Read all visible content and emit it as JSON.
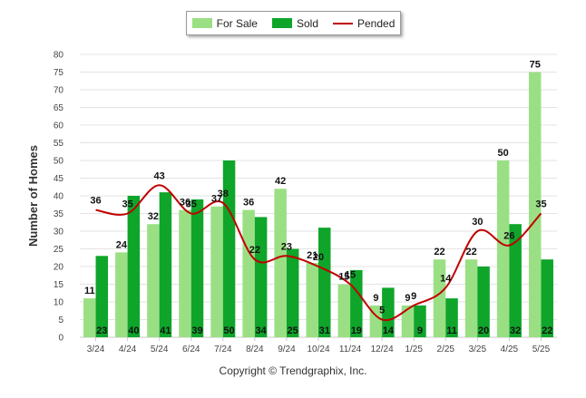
{
  "legend": {
    "for_sale": "For Sale",
    "sold": "Sold",
    "pended": "Pended"
  },
  "footer": {
    "copyright": "Copyright © Trendgraphix, Inc."
  },
  "colors": {
    "for_sale": "#9bdf84",
    "sold": "#0ea52a",
    "pended": "#c00000",
    "grid": "#e3e3e3",
    "axis_text": "#444444"
  },
  "chart_data": {
    "type": "bar",
    "ylabel": "Number of Homes",
    "xlabel": "",
    "ylim": [
      0,
      80
    ],
    "yticks": [
      0,
      5,
      10,
      15,
      20,
      25,
      30,
      35,
      40,
      45,
      50,
      55,
      60,
      65,
      70,
      75,
      80
    ],
    "grid": true,
    "legend_position": "top-center",
    "categories": [
      "3/24",
      "4/24",
      "5/24",
      "6/24",
      "7/24",
      "8/24",
      "9/24",
      "10/24",
      "11/24",
      "12/24",
      "1/25",
      "2/25",
      "3/25",
      "4/25",
      "5/25"
    ],
    "series": [
      {
        "name": "For Sale",
        "type": "bar",
        "values": [
          11,
          24,
          32,
          36,
          37,
          36,
          42,
          21,
          15,
          9,
          9,
          22,
          22,
          50,
          75
        ]
      },
      {
        "name": "Sold",
        "type": "bar",
        "values": [
          23,
          40,
          41,
          39,
          50,
          34,
          25,
          31,
          19,
          14,
          9,
          11,
          20,
          32,
          22
        ]
      },
      {
        "name": "Pended",
        "type": "line",
        "values": [
          36,
          35,
          43,
          35,
          38,
          22,
          23,
          20,
          15,
          5,
          9,
          14,
          30,
          26,
          35
        ]
      }
    ]
  }
}
